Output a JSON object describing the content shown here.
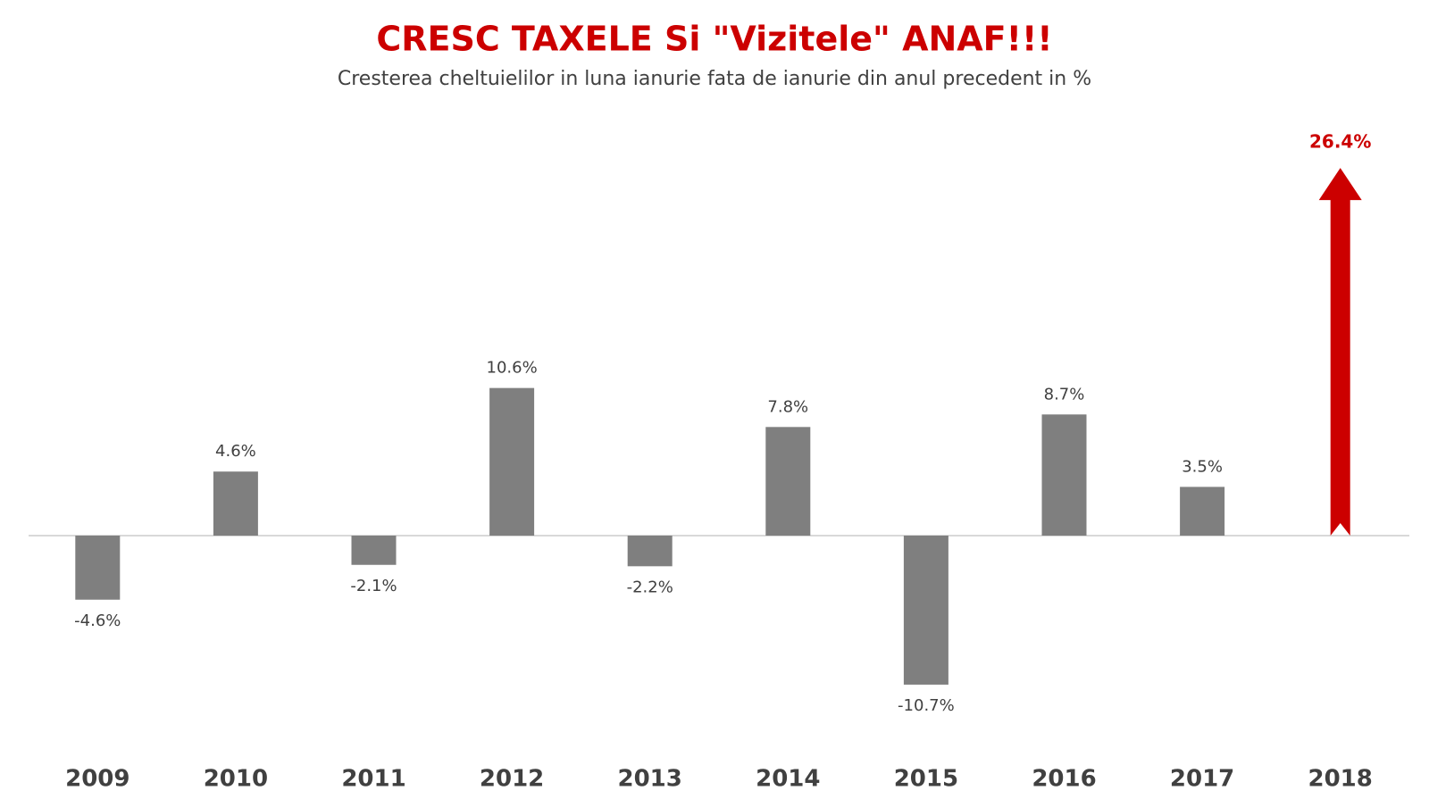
{
  "chart_data": {
    "type": "bar",
    "title": "CRESC TAXELE Si \"Vizitele\" ANAF!!!",
    "subtitle": "Cresterea cheltuielilor in luna ianurie fata de ianurie din anul precedent in %",
    "categories": [
      "2009",
      "2010",
      "2011",
      "2012",
      "2013",
      "2014",
      "2015",
      "2016",
      "2017",
      "2018"
    ],
    "values": [
      -4.6,
      4.6,
      -2.1,
      10.6,
      -2.2,
      7.8,
      -10.7,
      8.7,
      3.5,
      26.4
    ],
    "value_labels": [
      "-4.6%",
      "4.6%",
      "-2.1%",
      "10.6%",
      "-2.2%",
      "7.8%",
      "-10.7%",
      "8.7%",
      "3.5%",
      "26.4%"
    ],
    "colors": [
      "#7f7f7f",
      "#7f7f7f",
      "#7f7f7f",
      "#7f7f7f",
      "#7f7f7f",
      "#7f7f7f",
      "#7f7f7f",
      "#7f7f7f",
      "#7f7f7f",
      "#cc0000"
    ],
    "arrow_categories": [
      "2018"
    ]
  }
}
